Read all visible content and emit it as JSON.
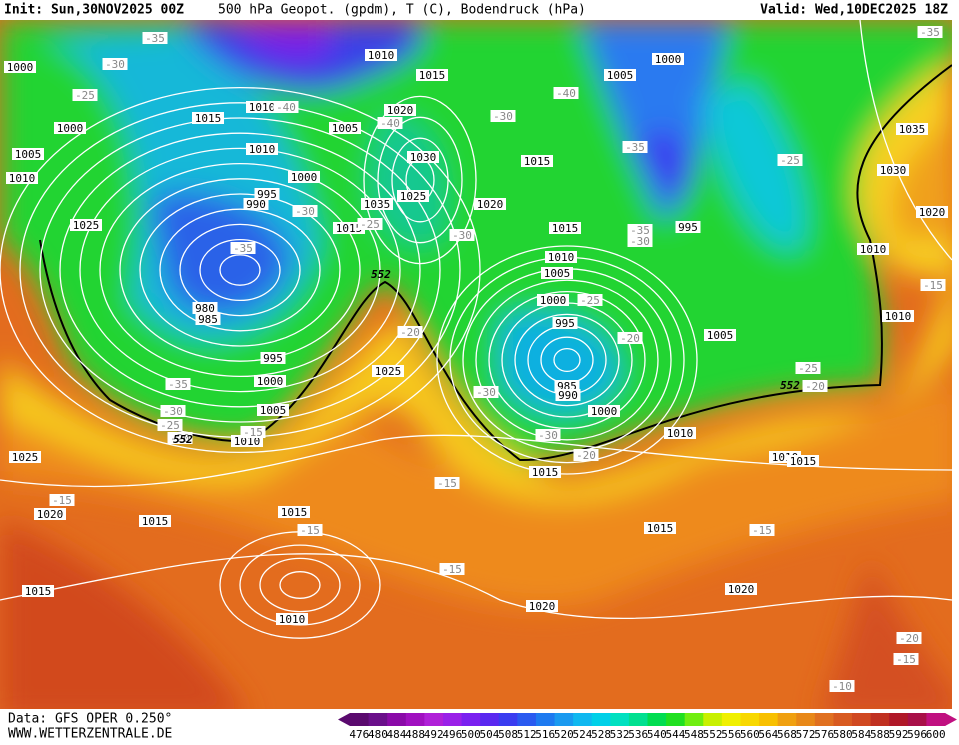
{
  "header": {
    "init": "Init: Sun,30NOV2025 00Z",
    "title": "500 hPa Geopot. (gpdm), T (C), Bodendruck (hPa)",
    "valid": "Valid: Wed,10DEC2025 18Z"
  },
  "footer": {
    "data": "Data: GFS OPER 0.250°",
    "site": "WWW.WETTERZENTRALE.DE"
  },
  "pressure_labels": [
    1000,
    1000,
    1005,
    1010,
    1010,
    1015,
    1005,
    1000,
    1010,
    1015,
    1020,
    1005,
    1010,
    1030,
    1015,
    1000,
    995,
    990,
    1035,
    1025,
    1020,
    1015,
    1015,
    1025,
    995,
    1035,
    1030,
    1020,
    1010,
    1010,
    1005,
    1000,
    980,
    985,
    995,
    1010,
    1005,
    995,
    1000,
    1025,
    985,
    990,
    1000,
    1005,
    1010,
    1010,
    1010,
    1015,
    1025,
    1015,
    1020,
    1015,
    1015,
    1015,
    1010,
    1015,
    1020,
    1020
  ],
  "temperature_labels": [
    -35,
    -30,
    -25,
    -40,
    -40,
    -35,
    -30,
    -40,
    -25,
    -30,
    -25,
    -30,
    -35,
    -30,
    -35,
    -25,
    -20,
    -20,
    -15,
    -25,
    -20,
    -35,
    -30,
    -30,
    -25,
    -20,
    -15,
    -30,
    -20,
    -15,
    -15,
    -15,
    -15,
    -15,
    -20,
    -15,
    -10,
    -35
  ],
  "height_labels": [
    552,
    552,
    552
  ],
  "colorbar": {
    "labels": [
      476,
      480,
      484,
      488,
      492,
      496,
      500,
      504,
      508,
      512,
      516,
      520,
      524,
      528,
      532,
      536,
      540,
      544,
      548,
      552,
      556,
      560,
      564,
      568,
      572,
      576,
      580,
      584,
      588,
      592,
      596,
      600
    ],
    "colors": [
      "#5a0a6e",
      "#6a0f8a",
      "#8a0aa8",
      "#a010c0",
      "#b020d8",
      "#9a20e8",
      "#7a20f0",
      "#5a28f0",
      "#3a3cf0",
      "#2a5af0",
      "#1e7af0",
      "#1a9af0",
      "#10b8f0",
      "#00d0e8",
      "#00e0c0",
      "#00e090",
      "#00dd50",
      "#20e020",
      "#70ee10",
      "#c8f000",
      "#f0f000",
      "#f8d800",
      "#f8c000",
      "#f0a010",
      "#e88818",
      "#e07020",
      "#d85a20",
      "#d04820",
      "#c03020",
      "#b01828",
      "#a81048",
      "#c01080"
    ]
  }
}
